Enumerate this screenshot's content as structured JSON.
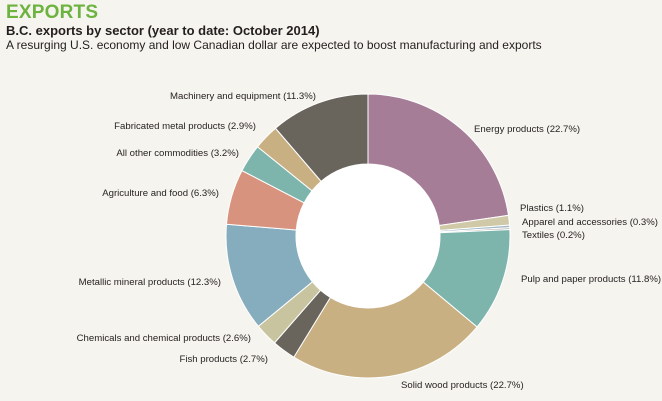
{
  "header": {
    "heading": "EXPORTS",
    "title": "B.C. exports by sector (year to date: October 2014)",
    "subtitle": "A resurging U.S. economy and low Canadian dollar are expected to boost manufacturing and exports"
  },
  "chart_data": {
    "type": "pie",
    "title": "B.C. exports by sector (year to date: October 2014)",
    "subtitle": "A resurging U.S. economy and low Canadian dollar are expected to boost manufacturing and exports",
    "hole": true,
    "legend": "labels beside slices",
    "slices": [
      {
        "label": "Energy products (22.7%)",
        "value": 22.7,
        "color": "#a57d96"
      },
      {
        "label": "Plastics (1.1%)",
        "value": 1.1,
        "color": "#cfc9a8"
      },
      {
        "label": "Apparel and accessories (0.3%)",
        "value": 0.3,
        "color": "#a3b9c7"
      },
      {
        "label": "Textiles (0.2%)",
        "value": 0.2,
        "color": "#b5b3b0"
      },
      {
        "label": "Pulp and paper products (11.8%)",
        "value": 11.8,
        "color": "#7db5ac"
      },
      {
        "label": "Solid wood products (22.7%)",
        "value": 22.7,
        "color": "#c9b083"
      },
      {
        "label": "Fish products (2.7%)",
        "value": 2.7,
        "color": "#6a655c"
      },
      {
        "label": "Chemicals and chemical products (2.6%)",
        "value": 2.6,
        "color": "#c8c4a0"
      },
      {
        "label": "Metallic mineral products (12.3%)",
        "value": 12.3,
        "color": "#86adbd"
      },
      {
        "label": "Agriculture and food (6.3%)",
        "value": 6.3,
        "color": "#d8937e"
      },
      {
        "label": "All other commodities (3.2%)",
        "value": 3.2,
        "color": "#7db5ac"
      },
      {
        "label": "Fabricated metal products (2.9%)",
        "value": 2.9,
        "color": "#c9b083"
      },
      {
        "label": "Machinery and equipment (11.3%)",
        "value": 11.3,
        "color": "#6a655c"
      }
    ]
  }
}
